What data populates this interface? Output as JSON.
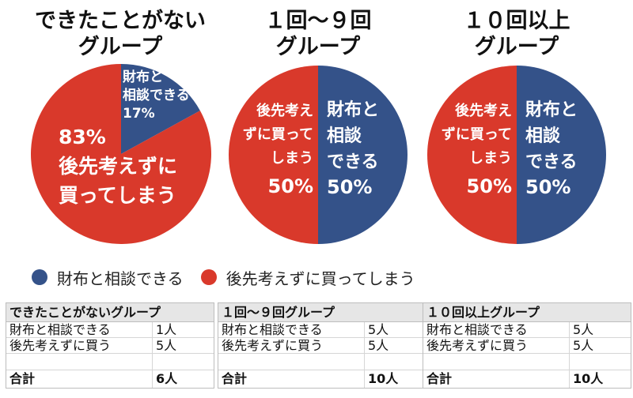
{
  "colors": {
    "blue": "#345289",
    "red": "#d9392b",
    "label": "#ffffff"
  },
  "chart_data": [
    {
      "type": "pie",
      "title_lines": [
        "できたことがない",
        "グループ"
      ],
      "slices": [
        {
          "name": "財布と相談できる",
          "value": 17,
          "label_lines": [
            "財布と",
            "相談できる",
            "17%"
          ],
          "color": "#345289"
        },
        {
          "name": "後先考えずに買ってしまう",
          "value": 83,
          "label_lines": [
            "83%",
            "後先考えずに",
            "買ってしまう"
          ],
          "color": "#d9392b"
        }
      ]
    },
    {
      "type": "pie",
      "title_lines": [
        "１回〜９回",
        "グループ"
      ],
      "slices": [
        {
          "name": "財布と相談できる",
          "value": 50,
          "label_lines": [
            "財布と",
            "相談",
            "できる",
            "50%"
          ],
          "color": "#345289"
        },
        {
          "name": "後先考えずに買ってしまう",
          "value": 50,
          "label_lines": [
            "後先考え",
            "ずに買って",
            "しまう",
            "50%"
          ],
          "color": "#d9392b"
        }
      ]
    },
    {
      "type": "pie",
      "title_lines": [
        "１０回以上",
        "グループ"
      ],
      "slices": [
        {
          "name": "財布と相談できる",
          "value": 50,
          "label_lines": [
            "財布と",
            "相談",
            "できる",
            "50%"
          ],
          "color": "#345289"
        },
        {
          "name": "後先考えずに買ってしまう",
          "value": 50,
          "label_lines": [
            "後先考え",
            "ずに買って",
            "しまう",
            "50%"
          ],
          "color": "#d9392b"
        }
      ]
    }
  ],
  "legend": [
    {
      "label": "財布と相談できる",
      "color": "#345289"
    },
    {
      "label": "後先考えずに買ってしまう",
      "color": "#d9392b"
    }
  ],
  "tables": [
    {
      "header": "できたことがないグループ",
      "rows": [
        {
          "label": "財布と相談できる",
          "value": "1人"
        },
        {
          "label": "後先考えずに買う",
          "value": "5人"
        }
      ],
      "total_label": "合計",
      "total_value": "6人"
    },
    {
      "header": "１回〜９回グループ",
      "rows": [
        {
          "label": "財布と相談できる",
          "value": "5人"
        },
        {
          "label": "後先考えずに買う",
          "value": "5人"
        }
      ],
      "total_label": "合計",
      "total_value": "10人"
    },
    {
      "header": "１０回以上グループ",
      "rows": [
        {
          "label": "財布と相談できる",
          "value": "5人"
        },
        {
          "label": "後先考えずに買う",
          "value": "5人"
        }
      ],
      "total_label": "合計",
      "total_value": "10人"
    }
  ]
}
